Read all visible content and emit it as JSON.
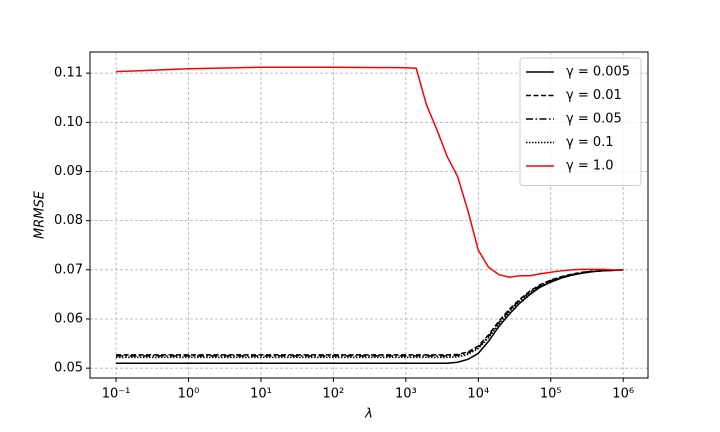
{
  "chart_data": {
    "type": "line",
    "x_label": "λ",
    "y_label": "MRMSE",
    "x_scale": "log",
    "grid": true,
    "legend": "upper right",
    "x": [
      0.1,
      1,
      10,
      100,
      1000,
      1389,
      1931,
      2683,
      3728,
      5179,
      7197,
      10000,
      13895,
      19307,
      26827,
      37276,
      51795,
      71969,
      100000,
      138950,
      193070,
      268270,
      372760,
      517950,
      719690,
      1000000
    ],
    "xlim": [
      0.0437,
      2200000
    ],
    "xticks": [
      {
        "value": 0.1,
        "label": "10⁻¹"
      },
      {
        "value": 1,
        "label": "10⁰"
      },
      {
        "value": 10,
        "label": "10¹"
      },
      {
        "value": 100,
        "label": "10²"
      },
      {
        "value": 1000,
        "label": "10³"
      },
      {
        "value": 10000,
        "label": "10⁴"
      },
      {
        "value": 100000,
        "label": "10⁵"
      },
      {
        "value": 1000000,
        "label": "10⁶"
      }
    ],
    "ylim": [
      0.048,
      0.1143
    ],
    "yticks": [
      0.05,
      0.06,
      0.07,
      0.08,
      0.09,
      {
        "value": 0.1,
        "label": "0.10"
      },
      0.11
    ],
    "series": [
      {
        "name": "γ = 0.005",
        "color": "#000000",
        "dash": "solid",
        "values": [
          0.051,
          0.051,
          0.051,
          0.051,
          0.051,
          0.051,
          0.051,
          0.051,
          0.051,
          0.0512,
          0.0518,
          0.053,
          0.0555,
          0.0585,
          0.061,
          0.0632,
          0.065,
          0.0665,
          0.0675,
          0.0683,
          0.0689,
          0.0693,
          0.0696,
          0.0698,
          0.0699,
          0.07
        ]
      },
      {
        "name": "γ = 0.01",
        "color": "#000000",
        "dash": "dashed",
        "values": [
          0.0527,
          0.0527,
          0.0527,
          0.0527,
          0.0527,
          0.0527,
          0.0527,
          0.0527,
          0.0527,
          0.0528,
          0.0533,
          0.0545,
          0.0568,
          0.0596,
          0.062,
          0.064,
          0.0657,
          0.067,
          0.0679,
          0.0686,
          0.0691,
          0.0695,
          0.0697,
          0.0698,
          0.0699,
          0.07
        ]
      },
      {
        "name": "γ = 0.05",
        "color": "#000000",
        "dash": "dashdot",
        "values": [
          0.0525,
          0.0525,
          0.0525,
          0.0525,
          0.0525,
          0.0525,
          0.0525,
          0.0525,
          0.0525,
          0.0526,
          0.0531,
          0.0542,
          0.0565,
          0.0593,
          0.0617,
          0.0638,
          0.0655,
          0.0668,
          0.0678,
          0.0685,
          0.069,
          0.0694,
          0.0697,
          0.0698,
          0.0699,
          0.07
        ]
      },
      {
        "name": "γ = 0.1",
        "color": "#000000",
        "dash": "dotted",
        "values": [
          0.0522,
          0.0522,
          0.0522,
          0.0522,
          0.0522,
          0.0522,
          0.0522,
          0.0522,
          0.0522,
          0.0523,
          0.0528,
          0.054,
          0.0562,
          0.059,
          0.0615,
          0.0636,
          0.0653,
          0.0667,
          0.0677,
          0.0685,
          0.069,
          0.0694,
          0.0697,
          0.0698,
          0.0699,
          0.07
        ]
      },
      {
        "name": "γ = 1.0",
        "color": "#ff0000",
        "dash": "solid",
        "values": [
          0.1103,
          0.1109,
          0.1112,
          0.1112,
          0.1111,
          0.111,
          0.1035,
          0.0985,
          0.093,
          0.089,
          0.082,
          0.074,
          0.0705,
          0.069,
          0.0685,
          0.0688,
          0.0688,
          0.0692,
          0.0695,
          0.0698,
          0.07,
          0.0701,
          0.0701,
          0.0701,
          0.07,
          0.07
        ]
      }
    ]
  }
}
